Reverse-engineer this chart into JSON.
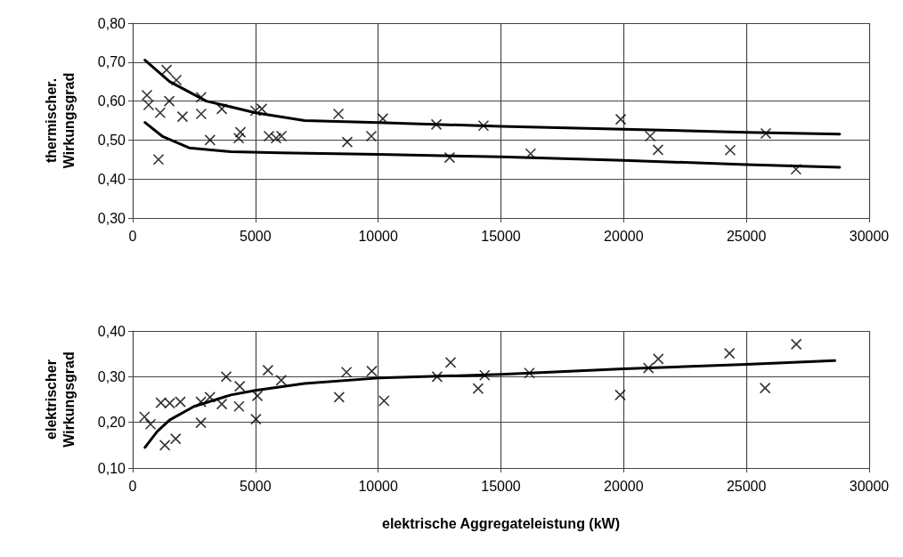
{
  "chart_data": [
    {
      "type": "scatter",
      "ylabel": "thermischer.\nWirkungsgrad",
      "xlim": [
        0,
        30000
      ],
      "xticks": [
        0,
        5000,
        10000,
        15000,
        20000,
        25000,
        30000
      ],
      "ylim": [
        0.3,
        0.8
      ],
      "yticks": [
        {
          "value": 0.3,
          "label": "0,30"
        },
        {
          "value": 0.4,
          "label": "0,40"
        },
        {
          "value": 0.5,
          "label": "0,50"
        },
        {
          "value": 0.6,
          "label": "0,60"
        },
        {
          "value": 0.7,
          "label": "0,70"
        },
        {
          "value": 0.8,
          "label": "0,80"
        }
      ],
      "grid": true,
      "series": [
        {
          "type": "scatter",
          "marker": "cross",
          "color": "#000000",
          "x": [
            580,
            650,
            1380,
            1780,
            1490,
            2030,
            1120,
            1050,
            2790,
            2790,
            3150,
            3630,
            4320,
            4390,
            5000,
            5260,
            5840,
            5550,
            6060,
            8380,
            8740,
            9720,
            10190,
            12370,
            12910,
            14290,
            16210,
            19880,
            21080,
            21400,
            24340,
            25790,
            27020
          ],
          "values": [
            0.615,
            0.59,
            0.68,
            0.654,
            0.6,
            0.56,
            0.57,
            0.45,
            0.61,
            0.567,
            0.5,
            0.58,
            0.505,
            0.52,
            0.575,
            0.58,
            0.505,
            0.51,
            0.51,
            0.567,
            0.495,
            0.51,
            0.555,
            0.54,
            0.455,
            0.537,
            0.465,
            0.553,
            0.51,
            0.475,
            0.474,
            0.517,
            0.425
          ]
        },
        {
          "type": "line",
          "marker": "none",
          "line_style": "solid",
          "color": "#000000",
          "x": [
            500,
            1500,
            3000,
            5000,
            7000,
            10000,
            15000,
            20000,
            25000,
            28800
          ],
          "values": [
            0.705,
            0.65,
            0.6,
            0.57,
            0.55,
            0.545,
            0.535,
            0.528,
            0.52,
            0.515
          ]
        },
        {
          "type": "line",
          "marker": "none",
          "line_style": "solid",
          "color": "#000000",
          "x": [
            500,
            1200,
            2300,
            4000,
            6000,
            10000,
            15000,
            20000,
            25000,
            28800
          ],
          "values": [
            0.545,
            0.51,
            0.48,
            0.47,
            0.467,
            0.463,
            0.457,
            0.448,
            0.437,
            0.43
          ]
        }
      ]
    },
    {
      "type": "scatter",
      "ylabel": "elektrischer\nWirkungsgrad",
      "xlabel": "elektrische Aggregateleistung (kW)",
      "xlim": [
        0,
        30000
      ],
      "xticks": [
        0,
        5000,
        10000,
        15000,
        20000,
        25000,
        30000
      ],
      "ylim": [
        0.1,
        0.4
      ],
      "yticks": [
        {
          "value": 0.1,
          "label": "0,10"
        },
        {
          "value": 0.2,
          "label": "0,20"
        },
        {
          "value": 0.3,
          "label": "0,30"
        },
        {
          "value": 0.4,
          "label": "0,40"
        }
      ],
      "grid": true,
      "series": [
        {
          "type": "scatter",
          "marker": "cross",
          "color": "#000000",
          "x": [
            726,
            484,
            1150,
            1510,
            1940,
            1750,
            1310,
            2780,
            2780,
            3150,
            3630,
            3810,
            4360,
            4330,
            5080,
            5020,
            5510,
            6050,
            8410,
            8710,
            9740,
            10240,
            12400,
            12950,
            14070,
            14340,
            16160,
            19860,
            21010,
            21410,
            24310,
            25760,
            27030
          ],
          "values": [
            0.196,
            0.212,
            0.243,
            0.242,
            0.245,
            0.164,
            0.15,
            0.199,
            0.245,
            0.255,
            0.24,
            0.3,
            0.279,
            0.235,
            0.258,
            0.207,
            0.314,
            0.292,
            0.255,
            0.31,
            0.312,
            0.247,
            0.3,
            0.331,
            0.274,
            0.303,
            0.308,
            0.26,
            0.319,
            0.339,
            0.351,
            0.275,
            0.371
          ]
        },
        {
          "type": "line",
          "marker": "none",
          "line_style": "solid",
          "color": "#000000",
          "x": [
            500,
            1000,
            1500,
            2500,
            4000,
            5000,
            7000,
            10000,
            15000,
            20000,
            25000,
            28600
          ],
          "values": [
            0.145,
            0.18,
            0.205,
            0.235,
            0.26,
            0.27,
            0.285,
            0.297,
            0.305,
            0.317,
            0.327,
            0.335
          ]
        }
      ]
    }
  ]
}
